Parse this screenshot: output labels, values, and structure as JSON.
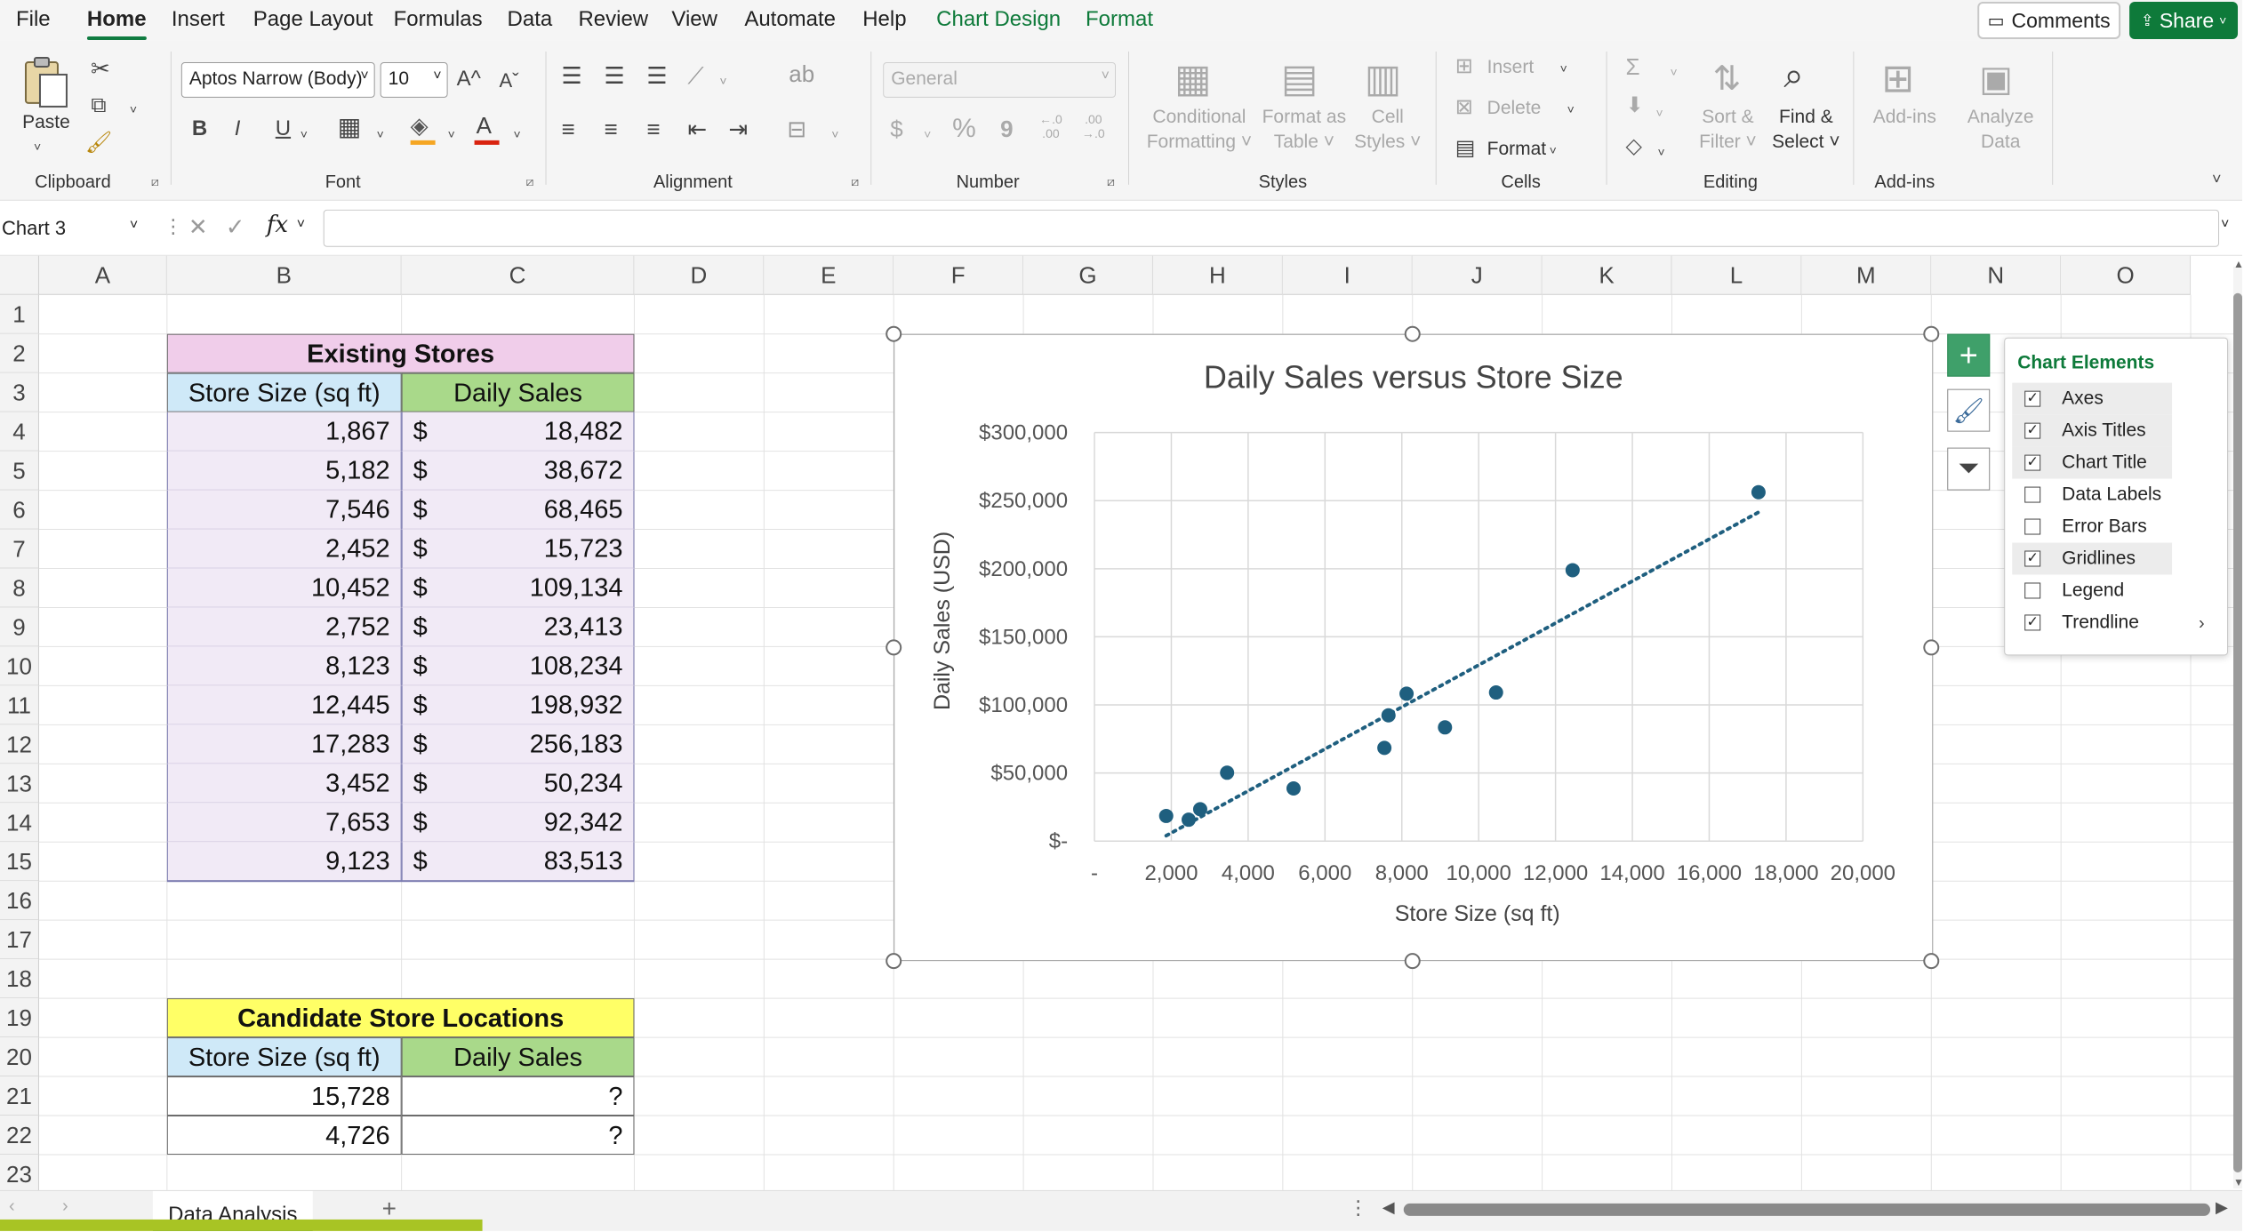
{
  "menu": {
    "items": [
      "File",
      "Home",
      "Insert",
      "Page Layout",
      "Formulas",
      "Data",
      "Review",
      "View",
      "Automate",
      "Help",
      "Chart Design",
      "Format"
    ],
    "comments": "Comments",
    "share": "Share"
  },
  "ribbon": {
    "clipboard": {
      "paste": "Paste",
      "label": "Clipboard"
    },
    "font": {
      "name": "Aptos Narrow (Body)",
      "size": "10",
      "grow": "A^",
      "shrink": "Aˇ",
      "bold": "B",
      "italic": "I",
      "underline": "U",
      "label": "Font"
    },
    "alignment": {
      "label": "Alignment"
    },
    "number": {
      "format": "General",
      "currency": "$",
      "percent": "%",
      "comma": "9",
      "inc_dec": "←.0\n.00",
      "dec_dec": ".00\n→.0",
      "label": "Number"
    },
    "styles": {
      "conditional": "Conditional\nFormatting ˅",
      "format_table": "Format as\nTable ˅",
      "cell_styles": "Cell\nStyles ˅",
      "label": "Styles"
    },
    "cells": {
      "insert": "Insert",
      "delete": "Delete",
      "format": "Format",
      "label": "Cells"
    },
    "editing": {
      "sort": "Sort &\nFilter ˅",
      "find": "Find &\nSelect ˅",
      "label": "Editing"
    },
    "addins": {
      "addins": "Add-ins",
      "analyze": "Analyze\nData",
      "label": "Add-ins"
    }
  },
  "formula_bar": {
    "name_box": "Chart 3",
    "fx": "fx",
    "value": ""
  },
  "columns": [
    "A",
    "B",
    "C",
    "D",
    "E",
    "F",
    "G",
    "H",
    "I",
    "J",
    "K",
    "L",
    "M",
    "N",
    "O"
  ],
  "rows": [
    "1",
    "2",
    "3",
    "4",
    "5",
    "6",
    "7",
    "8",
    "9",
    "10",
    "11",
    "12",
    "13",
    "14",
    "15",
    "16",
    "17",
    "18",
    "19",
    "20",
    "21",
    "22",
    "23"
  ],
  "existing_stores": {
    "title": "Existing Stores",
    "col_size": "Store Size (sq ft)",
    "col_sales": "Daily Sales",
    "currency": "$",
    "rows": [
      {
        "size": "1,867",
        "sales": "18,482"
      },
      {
        "size": "5,182",
        "sales": "38,672"
      },
      {
        "size": "7,546",
        "sales": "68,465"
      },
      {
        "size": "2,452",
        "sales": "15,723"
      },
      {
        "size": "10,452",
        "sales": "109,134"
      },
      {
        "size": "2,752",
        "sales": "23,413"
      },
      {
        "size": "8,123",
        "sales": "108,234"
      },
      {
        "size": "12,445",
        "sales": "198,932"
      },
      {
        "size": "17,283",
        "sales": "256,183"
      },
      {
        "size": "3,452",
        "sales": "50,234"
      },
      {
        "size": "7,653",
        "sales": "92,342"
      },
      {
        "size": "9,123",
        "sales": "83,513"
      }
    ]
  },
  "candidates": {
    "title": "Candidate Store Locations",
    "col_size": "Store Size (sq ft)",
    "col_sales": "Daily Sales",
    "rows": [
      {
        "size": "15,728",
        "sales": "?"
      },
      {
        "size": "4,726",
        "sales": "?"
      }
    ]
  },
  "chart_data": {
    "type": "scatter",
    "title": "Daily Sales versus Store Size",
    "xlabel": "Store Size (sq ft)",
    "ylabel": "Daily Sales (USD)",
    "xlim": [
      0,
      20000
    ],
    "ylim": [
      0,
      300000
    ],
    "x_ticks": [
      "-",
      "2,000",
      "4,000",
      "6,000",
      "8,000",
      "10,000",
      "12,000",
      "14,000",
      "16,000",
      "18,000",
      "20,000"
    ],
    "y_ticks": [
      "$-",
      "$50,000",
      "$100,000",
      "$150,000",
      "$200,000",
      "$250,000",
      "$300,000"
    ],
    "grid": true,
    "trendline": "linear (dotted)",
    "series": [
      {
        "name": "Daily Sales",
        "points": [
          [
            1867,
            18482
          ],
          [
            5182,
            38672
          ],
          [
            7546,
            68465
          ],
          [
            2452,
            15723
          ],
          [
            10452,
            109134
          ],
          [
            2752,
            23413
          ],
          [
            8123,
            108234
          ],
          [
            12445,
            198932
          ],
          [
            17283,
            256183
          ],
          [
            3452,
            50234
          ],
          [
            7653,
            92342
          ],
          [
            9123,
            83513
          ]
        ]
      }
    ],
    "marker_color": "#1f5f7f"
  },
  "chart_elements": {
    "title": "Chart Elements",
    "items": [
      {
        "label": "Axes",
        "checked": true
      },
      {
        "label": "Axis Titles",
        "checked": true
      },
      {
        "label": "Chart Title",
        "checked": true
      },
      {
        "label": "Data Labels",
        "checked": false
      },
      {
        "label": "Error Bars",
        "checked": false
      },
      {
        "label": "Gridlines",
        "checked": true
      },
      {
        "label": "Legend",
        "checked": false
      },
      {
        "label": "Trendline",
        "checked": true
      }
    ]
  },
  "sheet": {
    "tab": "Data Analysis",
    "add": "+"
  },
  "colors": {
    "accent": "#107c41",
    "header_pink": "#f0cdea",
    "header_blue": "#cfe9f8",
    "header_green": "#a9d98a",
    "header_yellow": "#ffff66",
    "data_fill": "#f1eaf6"
  }
}
